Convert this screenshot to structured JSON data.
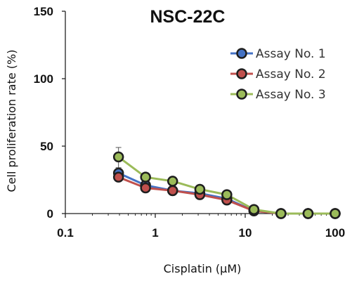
{
  "chart_data": {
    "type": "line",
    "title": "NSC-22C",
    "xlabel": "Cisplatin (μM)",
    "ylabel": "Cell proliferation rate (%)",
    "x_scale": "log",
    "xlim": [
      0.1,
      100
    ],
    "ylim": [
      0,
      150
    ],
    "x_ticks": [
      0.1,
      1,
      10,
      100
    ],
    "x_tick_labels": [
      "0.1",
      "1",
      "10",
      "100"
    ],
    "y_ticks": [
      0,
      50,
      100,
      150
    ],
    "y_tick_labels": [
      "0",
      "50",
      "100",
      "150"
    ],
    "x": [
      0.39,
      0.78,
      1.56,
      3.13,
      6.25,
      12.5,
      25,
      50,
      100
    ],
    "series": [
      {
        "name": "Assay No. 1",
        "color": "#4472c4",
        "values": [
          30,
          21,
          17,
          15,
          11,
          2,
          0,
          0,
          0
        ]
      },
      {
        "name": "Assay No. 2",
        "color": "#c0504d",
        "values": [
          27,
          19,
          17,
          14,
          10,
          2,
          0,
          0,
          0
        ]
      },
      {
        "name": "Assay No. 3",
        "color": "#9bbb59",
        "values": [
          42,
          27,
          24,
          18,
          14,
          3,
          0,
          0,
          0
        ]
      }
    ],
    "error_bars": [
      {
        "series": "Assay No. 3",
        "x": 0.39,
        "low": 34,
        "high": 49
      }
    ],
    "marker_color": "#1f1f1f",
    "grid": false,
    "legend_position": "top-right"
  }
}
